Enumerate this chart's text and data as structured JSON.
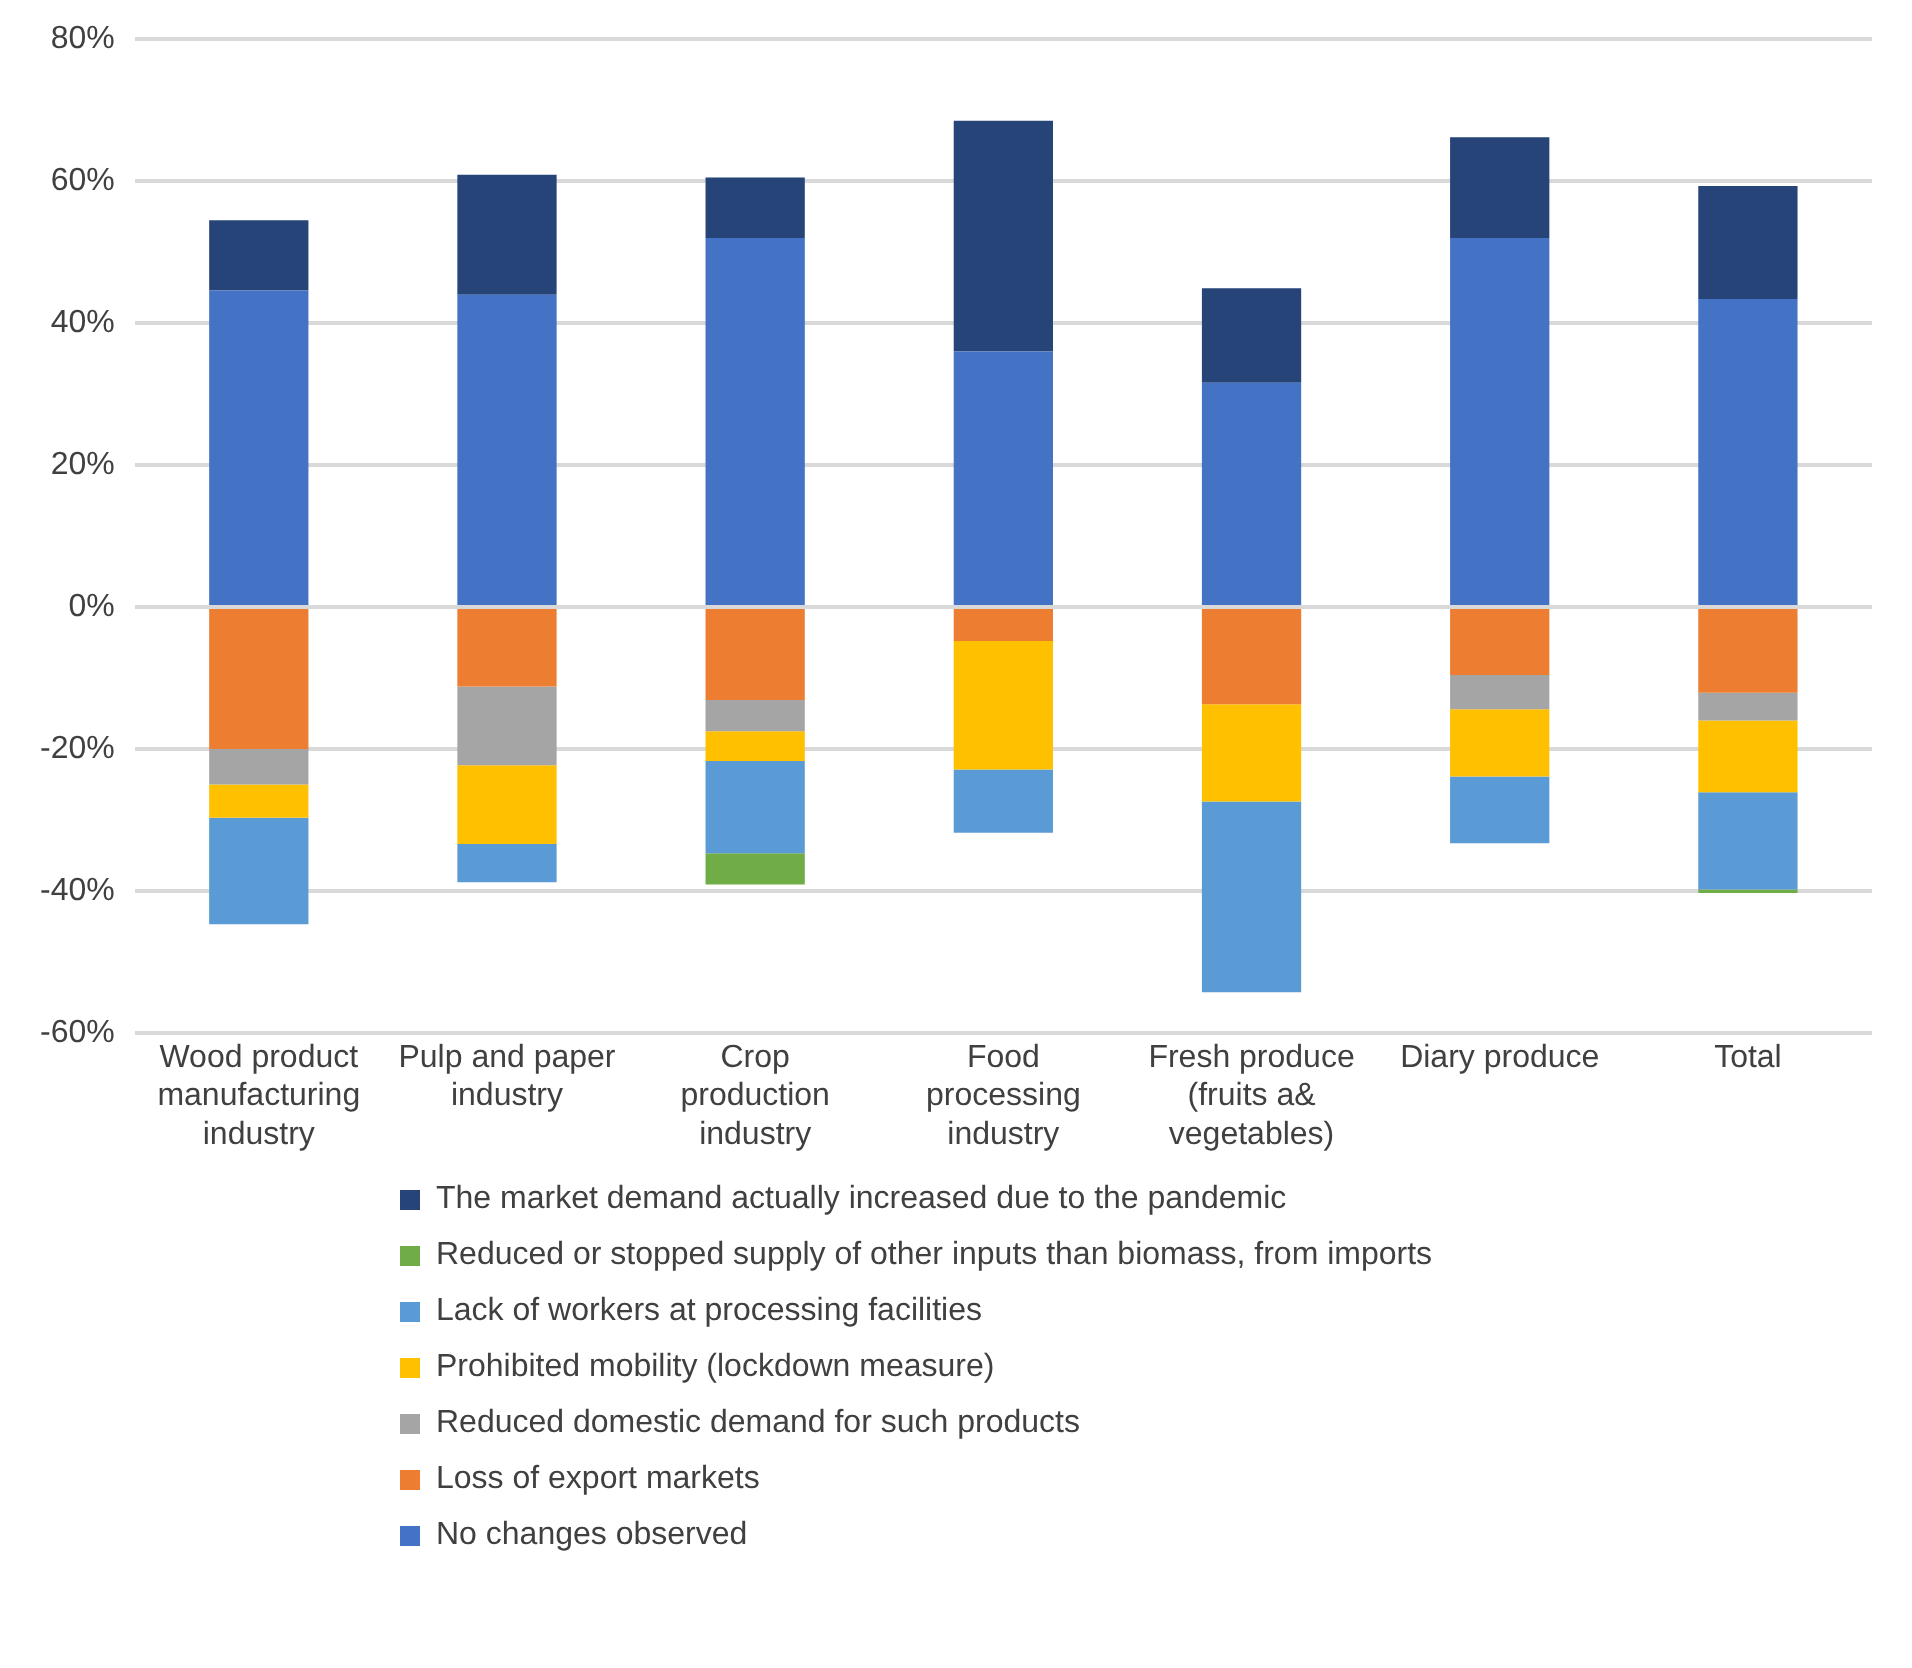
{
  "chart_data": {
    "type": "bar",
    "stacked": true,
    "categories": [
      "Wood product manufacturing industry",
      "Pulp and paper industry",
      "Crop production industry",
      "Food processing industry",
      "Fresh produce (fruits a& vegetables)",
      "Diary produce",
      "Total"
    ],
    "series": [
      {
        "name": "No changes observed",
        "color": "#4472c4",
        "values": [
          44.6,
          44,
          52,
          36,
          31.6,
          52,
          43.4
        ]
      },
      {
        "name": "Loss of export markets",
        "color": "#ed7d31",
        "values": [
          -20,
          -11.2,
          -13.1,
          -4.8,
          -13.7,
          -9.6,
          -12.1
        ]
      },
      {
        "name": "Reduced domestic demand for such products",
        "color": "#a5a5a5",
        "values": [
          -5,
          -11.1,
          -4.4,
          0,
          0,
          -4.8,
          -3.9
        ]
      },
      {
        "name": "Prohibited mobility (lockdown measure)",
        "color": "#ffc000",
        "values": [
          -4.7,
          -11.1,
          -4.2,
          -18.1,
          -13.7,
          -9.5,
          -10.1
        ]
      },
      {
        "name": "Lack of workers at processing facilities",
        "color": "#5b9bd5",
        "values": [
          -15,
          -5.4,
          -13,
          -8.9,
          -26.9,
          -9.4,
          -13.7
        ]
      },
      {
        "name": "Reduced or stopped supply of other inputs than biomass, from imports",
        "color": "#70ad47",
        "values": [
          0,
          0,
          -4.4,
          0,
          0,
          0,
          -0.5
        ]
      },
      {
        "name": "The market demand actually increased due to the pandemic",
        "color": "#264478",
        "values": [
          9.9,
          16.9,
          8.5,
          32.5,
          13.3,
          14.2,
          15.9
        ]
      }
    ],
    "ylim": [
      -60,
      80
    ],
    "yticks": [
      {
        "value": -60,
        "label": "-60%"
      },
      {
        "value": -40,
        "label": "-40%"
      },
      {
        "value": -20,
        "label": "-20%"
      },
      {
        "value": 0,
        "label": "0%"
      },
      {
        "value": 20,
        "label": "20%"
      },
      {
        "value": 40,
        "label": "40%"
      },
      {
        "value": 60,
        "label": "60%"
      },
      {
        "value": 80,
        "label": "80%"
      }
    ],
    "grid": "y",
    "legend": "bottom"
  }
}
